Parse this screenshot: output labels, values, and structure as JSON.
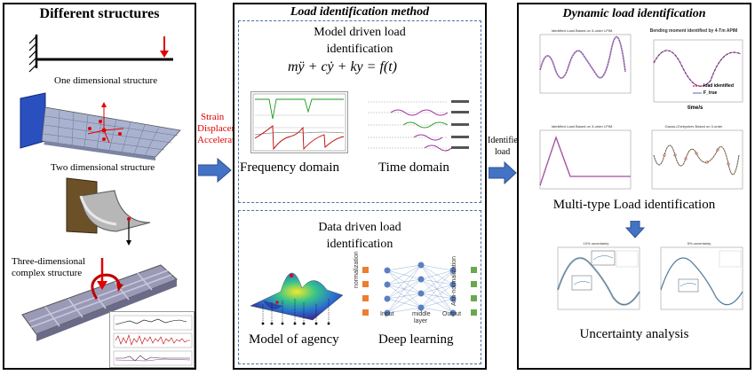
{
  "panels": {
    "left": {
      "title": "Different structures",
      "labels": {
        "one_dim": "One dimensional structure",
        "two_dim": "Two dimensional structure",
        "three_dim_line1": "Three-dimensional",
        "three_dim_line2": "complex structure"
      }
    },
    "middle": {
      "title": "Load identification method",
      "model": {
        "title_line1": "Model driven load",
        "title_line2": "identification",
        "equation": "mÿ + cẏ + ky = f(t)",
        "frequency_label": "Frequency domain",
        "time_label": "Time domain"
      },
      "data": {
        "title_line1": "Data driven load",
        "title_line2": "identification",
        "agency_label": "Model of agency",
        "deep_label": "Deep learning",
        "nn_input": "Input",
        "nn_middle_line1": "middle",
        "nn_middle_line2": "layer",
        "nn_output": "Output",
        "nn_norm": "normalization",
        "nn_antinorm": "Anti-normalization"
      }
    },
    "right": {
      "title": "Dynamic load identification",
      "multi_label": "Multi-type Load identification",
      "uncertainty_label": "Uncertainty analysis",
      "thumb_captions": {
        "a": "Identified Load Based on 3-order LPIM",
        "b": "Bending moment identified by 4-Tm APIM",
        "c": "Identified Load Based on 3-order LPIM",
        "d": "Gauss-Chebyshev Based on 3-order",
        "e": "10% uncertainty",
        "f": "5% uncertainty"
      },
      "legend": {
        "load_identified": "load identified",
        "f_true": "F_true"
      },
      "axis": {
        "time": "time/s"
      }
    }
  },
  "arrows": {
    "left_to_middle_line1": "Strain",
    "left_to_middle_line2": "Displacement",
    "left_to_middle_line3": "Accelerate",
    "middle_to_right_line1": "Identified",
    "middle_to_right_line2": "load"
  },
  "colors": {
    "panel_border": "#000000",
    "dashed_border": "#4a6fa5",
    "arrow_blue": "#4472c4",
    "strain_red": "#e00000",
    "force_red": "#e00000"
  }
}
